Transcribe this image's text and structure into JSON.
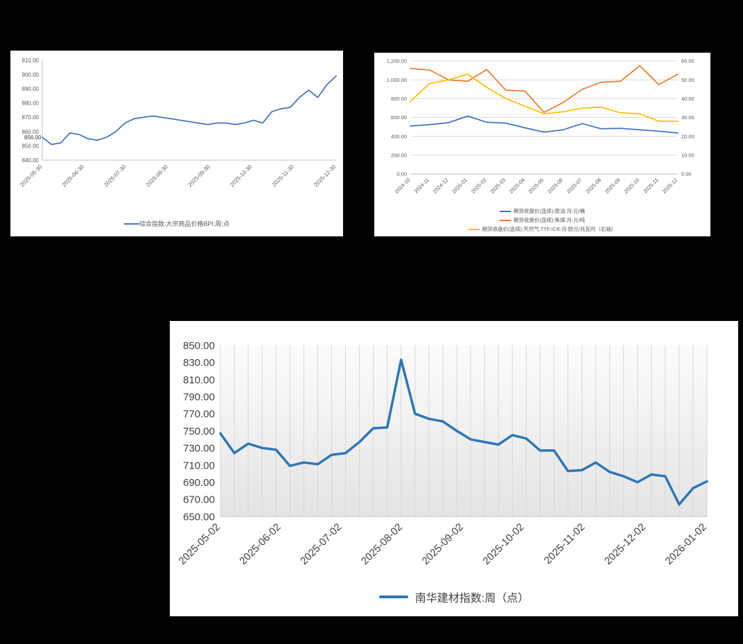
{
  "page": {
    "background_color": "#000000",
    "panel_color": "#ffffff"
  },
  "chart_data": [
    {
      "id": "bpi-weekly",
      "type": "line",
      "title": "",
      "ylim": [
        840,
        910
      ],
      "yticks": [
        "840.00",
        "850.00",
        "860.00",
        "870.00",
        "880.00",
        "890.00",
        "900.00",
        "910.00"
      ],
      "x_tick_labels": [
        "2025-05-30",
        "2025-06-30",
        "2025-07-30",
        "2025-08-30",
        "2025-09-30",
        "2025-10-30",
        "2025-11-30",
        "2025-12-30"
      ],
      "point_label": "856.00",
      "grid": "none",
      "legend_position": "bottom",
      "series": [
        {
          "name": "综合指数:大宗商品价格BPI:周:点",
          "color": "#4472C4",
          "axis": "left",
          "values": [
            856,
            851,
            852,
            859,
            858,
            855,
            854,
            856,
            860,
            866,
            869,
            870,
            871,
            870,
            869,
            868,
            867,
            866,
            865,
            866,
            866,
            865,
            866,
            868,
            866,
            874,
            876,
            877,
            884,
            889,
            884,
            893,
            899
          ]
        }
      ]
    },
    {
      "id": "futures-monthly",
      "type": "line",
      "title": "",
      "ylim": [
        0,
        1200
      ],
      "yticks": [
        "0.00",
        "200.00",
        "400.00",
        "600.00",
        "800.00",
        "1,000.00",
        "1,200.00"
      ],
      "y2lim": [
        0,
        60
      ],
      "y2ticks": [
        "0.00",
        "10.00",
        "20.00",
        "30.00",
        "40.00",
        "50.00",
        "60.00"
      ],
      "x_tick_labels": [
        "2024-10",
        "2024-11",
        "2024-12",
        "2025-01",
        "2025-02",
        "2025-03",
        "2025-04",
        "2025-05",
        "2025-06",
        "2025-07",
        "2025-08",
        "2025-09",
        "2025-10",
        "2025-11",
        "2025-12"
      ],
      "grid": "horizontal",
      "legend_position": "bottom",
      "series": [
        {
          "name": "期货收盘价(连续):原油:月:元/桶",
          "color": "#4472C4",
          "axis": "left",
          "values": [
            510,
            525,
            545,
            615,
            550,
            540,
            490,
            445,
            470,
            535,
            480,
            485,
            470,
            455,
            435
          ]
        },
        {
          "name": "期货收盘价(连续):焦煤:月:元/吨",
          "color": "#ED7D31",
          "axis": "left",
          "values": [
            1120,
            1105,
            1000,
            985,
            1110,
            890,
            880,
            655,
            760,
            900,
            975,
            985,
            1150,
            950,
            1060
          ]
        },
        {
          "name": "期货收盘价(连续):天然气:TTF:ICE:月:欧元/兆瓦时（右轴）",
          "color": "#FFC000",
          "axis": "right",
          "values": [
            38.5,
            48,
            50,
            53,
            46,
            40,
            36,
            32,
            33,
            35,
            35.5,
            32.5,
            32,
            28,
            28
          ]
        }
      ]
    },
    {
      "id": "nanhua-building-materials",
      "type": "line",
      "title": "",
      "ylim": [
        650,
        850
      ],
      "yticks": [
        "650.00",
        "670.00",
        "690.00",
        "710.00",
        "730.00",
        "750.00",
        "770.00",
        "790.00",
        "810.00",
        "830.00",
        "850.00"
      ],
      "x_tick_labels": [
        "2025-05-02",
        "2025-06-02",
        "2025-07-02",
        "2025-08-02",
        "2025-09-02",
        "2025-10-02",
        "2025-11-02",
        "2025-12-02",
        "2026-01-02"
      ],
      "grid": "vertical-per-point",
      "legend_position": "bottom",
      "series": [
        {
          "name": "南华建材指数:周（点）",
          "color": "#2E75B6",
          "axis": "left",
          "values": [
            747,
            724,
            735,
            730,
            728,
            709,
            713,
            711,
            722,
            724,
            737,
            753,
            754,
            833,
            770,
            764,
            761,
            750,
            740,
            737,
            734,
            745,
            741,
            727,
            727,
            703,
            704,
            713,
            702,
            697,
            690,
            699,
            697,
            664,
            683,
            691
          ]
        }
      ]
    }
  ]
}
